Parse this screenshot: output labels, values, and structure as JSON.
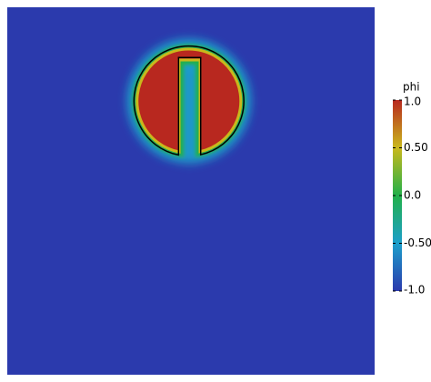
{
  "chart_data": {
    "type": "field",
    "colorbar_title": "phi",
    "clim": [
      -1,
      1
    ],
    "cticks": [
      {
        "value": 1,
        "label": "1.0"
      },
      {
        "value": 0.5,
        "label": "0.50"
      },
      {
        "value": 0,
        "label": "0.0"
      },
      {
        "value": -0.5,
        "label": "-0.50"
      },
      {
        "value": -1,
        "label": "-1.0"
      }
    ],
    "colormap": [
      "#2b3aad",
      "#1c9fcb",
      "#22b04a",
      "#c9b81c",
      "#b8281f"
    ]
  }
}
